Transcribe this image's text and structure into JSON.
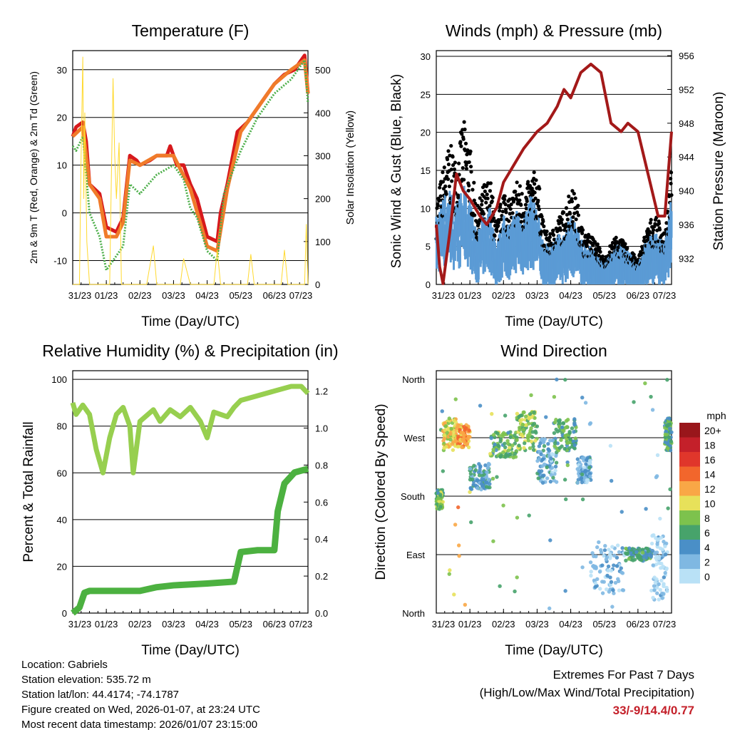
{
  "chart_data": [
    {
      "type": "line",
      "title": "Temperature (F)",
      "xlabel": "Time (Day/UTC)",
      "ylabel": "2m & 9m T (Red, Orange) & 2m Td (Green)",
      "y2label": "Solar Insolation (Yellow)",
      "xticks": [
        "31/23",
        "01/23",
        "02/23",
        "03/23",
        "04/23",
        "05/23",
        "06/23",
        "07/23"
      ],
      "yticks": [
        "-10",
        "0",
        "10",
        "20",
        "30"
      ],
      "y2ticks": [
        "0",
        "100",
        "200",
        "300",
        "400",
        "500"
      ],
      "ylim": [
        -15,
        34
      ],
      "y2lim": [
        0,
        545
      ],
      "xlim": [
        0,
        7
      ],
      "series": [
        {
          "name": "2m T",
          "color": "#d7191c",
          "x": [
            0,
            0.1,
            0.3,
            0.4,
            0.5,
            0.8,
            1.0,
            1.3,
            1.5,
            1.7,
            1.9,
            2.0,
            2.3,
            2.5,
            2.8,
            2.9,
            3.1,
            3.3,
            3.5,
            3.7,
            4.0,
            4.3,
            4.4,
            4.6,
            4.9,
            5.2,
            5.5,
            5.8,
            6.0,
            6.3,
            6.6,
            6.9,
            7.0
          ],
          "y": [
            16,
            18,
            19,
            15,
            6,
            4,
            -3,
            -4,
            -1,
            12,
            11,
            10,
            11,
            12,
            12,
            14,
            10,
            10,
            6,
            3,
            -5,
            -6,
            0,
            6,
            17,
            19,
            22,
            25,
            27,
            29,
            30,
            33,
            25
          ]
        },
        {
          "name": "9m T",
          "color": "#f07b2a",
          "x": [
            0,
            0.3,
            0.5,
            0.8,
            1.0,
            1.3,
            1.5,
            1.7,
            2.0,
            2.5,
            3.0,
            3.5,
            4.0,
            4.3,
            4.6,
            5.0,
            5.5,
            6.0,
            6.5,
            6.9,
            7.0
          ],
          "y": [
            16,
            18,
            6,
            3,
            -5,
            -5,
            -2,
            11,
            10,
            12,
            12,
            5,
            -7,
            -8,
            5,
            17,
            22,
            27,
            30,
            32,
            25
          ]
        },
        {
          "name": "2m Td",
          "color": "#4daf4a",
          "x": [
            0,
            0.1,
            0.3,
            0.5,
            0.8,
            1.0,
            1.2,
            1.5,
            1.7,
            2.0,
            2.5,
            3.0,
            3.3,
            3.5,
            3.7,
            4.0,
            4.3,
            4.5,
            5.0,
            5.5,
            6.0,
            6.5,
            6.9,
            7.0
          ],
          "y": [
            14,
            13,
            16,
            0,
            -5,
            -12,
            -10,
            -7,
            6,
            4,
            8,
            10,
            7,
            1,
            -1,
            -8,
            -10,
            4,
            13,
            20,
            25,
            28,
            32,
            23
          ]
        },
        {
          "name": "Solar",
          "axis": "y2",
          "color": "#ffd92f",
          "x": [
            0,
            0.2,
            0.25,
            0.3,
            0.33,
            0.36,
            0.42,
            0.5,
            1.1,
            1.15,
            1.2,
            1.25,
            1.3,
            1.38,
            1.45,
            2.2,
            2.4,
            2.5,
            3.2,
            3.3,
            3.5,
            4.2,
            4.3,
            4.4,
            5.2,
            5.3,
            5.4,
            6.2,
            6.3,
            6.4,
            6.9,
            6.95,
            7.0
          ],
          "y": [
            0,
            0,
            300,
            530,
            200,
            400,
            100,
            0,
            0,
            250,
            480,
            300,
            200,
            330,
            0,
            0,
            90,
            0,
            0,
            60,
            0,
            0,
            80,
            0,
            0,
            70,
            0,
            0,
            80,
            0,
            0,
            140,
            0
          ]
        }
      ]
    },
    {
      "type": "scatter",
      "title": "Winds (mph) & Pressure (mb)",
      "xlabel": "Time (Day/UTC)",
      "ylabel": "Sonic Wind & Gust (Blue, Black)",
      "y2label": "Station Pressure (Maroon)",
      "xticks": [
        "31/23",
        "01/23",
        "02/23",
        "03/23",
        "04/23",
        "05/23",
        "06/23",
        "07/23"
      ],
      "yticks": [
        "0",
        "5",
        "10",
        "15",
        "20",
        "25",
        "30"
      ],
      "y2ticks": [
        "932",
        "936",
        "940",
        "944",
        "948",
        "952",
        "956"
      ],
      "ylim": [
        0,
        30.75
      ],
      "y2lim": [
        928.9,
        956.6
      ],
      "xlim": [
        0,
        7
      ],
      "wind": {
        "x": [
          0,
          0.2,
          0.4,
          0.6,
          0.8,
          1.0,
          1.2,
          1.4,
          1.6,
          1.8,
          2.0,
          2.2,
          2.4,
          2.6,
          2.8,
          3.0,
          3.2,
          3.4,
          3.6,
          3.8,
          4.0,
          4.2,
          4.4,
          4.6,
          4.8,
          5.0,
          5.2,
          5.4,
          5.6,
          5.8,
          6.0,
          6.2,
          6.4,
          6.6,
          6.8,
          7.0
        ],
        "y": [
          6,
          8,
          9,
          7,
          9,
          8,
          4,
          6,
          7,
          3,
          6,
          5,
          7,
          6,
          8,
          7,
          3,
          3,
          4,
          4,
          6,
          5,
          3,
          3,
          2,
          1,
          2,
          3,
          3,
          2,
          1,
          3,
          4,
          4,
          3,
          8
        ]
      },
      "gust": {
        "y": [
          10,
          14,
          17,
          15,
          20,
          17,
          9,
          12,
          13,
          7,
          12,
          10,
          13,
          11,
          13,
          14,
          7,
          6,
          8,
          9,
          12,
          10,
          6,
          6,
          5,
          3,
          5,
          6,
          5,
          4,
          3,
          6,
          8,
          8,
          6,
          14
        ]
      },
      "pressure": {
        "x": [
          0,
          0.1,
          0.2,
          0.4,
          0.6,
          0.8,
          1.0,
          1.3,
          1.5,
          1.8,
          2.0,
          2.3,
          2.6,
          3.0,
          3.3,
          3.6,
          3.8,
          4.0,
          4.3,
          4.6,
          4.9,
          5.2,
          5.5,
          5.7,
          6.0,
          6.3,
          6.6,
          6.8,
          7.0
        ],
        "y": [
          936,
          931,
          929,
          935,
          942,
          940,
          939,
          937,
          936,
          938,
          941,
          943,
          945,
          947,
          948,
          950,
          952,
          951,
          954,
          955,
          954,
          948,
          947,
          948,
          947,
          942,
          937,
          937,
          947
        ]
      }
    },
    {
      "type": "line",
      "title": "Relative Humidity (%) & Precipitation (in)",
      "xlabel": "Time (Day/UTC)",
      "ylabel": "Percent & Total Rainfall",
      "xticks": [
        "31/23",
        "01/23",
        "02/23",
        "03/23",
        "04/23",
        "05/23",
        "06/23",
        "07/23"
      ],
      "yticks": [
        "0",
        "20",
        "40",
        "60",
        "80",
        "100"
      ],
      "y2ticks": [
        "0.0",
        "0.2",
        "0.4",
        "0.6",
        "0.8",
        "1.0",
        "1.2"
      ],
      "ylim": [
        0,
        103.7
      ],
      "y2lim": [
        0,
        1.31
      ],
      "xlim": [
        0,
        7
      ],
      "rh": {
        "x": [
          0,
          0.1,
          0.3,
          0.5,
          0.7,
          0.9,
          1.1,
          1.3,
          1.5,
          1.7,
          1.8,
          2.0,
          2.4,
          2.6,
          2.9,
          3.2,
          3.5,
          3.8,
          4.0,
          4.2,
          4.6,
          4.8,
          5.0,
          5.5,
          6.0,
          6.5,
          6.8,
          7.0
        ],
        "y": [
          90,
          85,
          89,
          85,
          70,
          60,
          75,
          85,
          88,
          80,
          60,
          82,
          87,
          82,
          87,
          84,
          88,
          82,
          75,
          86,
          84,
          88,
          91,
          93,
          95,
          97,
          97,
          94
        ]
      },
      "precip": {
        "x": [
          0,
          0.2,
          0.35,
          0.5,
          2.0,
          2.5,
          3.0,
          4.0,
          4.8,
          5.0,
          5.5,
          6.0,
          6.1,
          6.3,
          6.6,
          7.0
        ],
        "y": [
          0,
          0.03,
          0.11,
          0.12,
          0.12,
          0.14,
          0.15,
          0.16,
          0.17,
          0.33,
          0.34,
          0.34,
          0.55,
          0.7,
          0.76,
          0.78
        ]
      }
    },
    {
      "type": "scatter",
      "title": "Wind Direction",
      "xlabel": "Time (Day/UTC)",
      "ylabel": "Direction (Colored By Speed)",
      "xticks": [
        "31/23",
        "01/23",
        "02/23",
        "03/23",
        "04/23",
        "05/23",
        "06/23",
        "07/23"
      ],
      "yticks": [
        "North",
        "East",
        "South",
        "West",
        "North"
      ],
      "legend": {
        "title": "mph",
        "labels": [
          "20+",
          "18",
          "16",
          "14",
          "12",
          "10",
          "8",
          "6",
          "4",
          "2",
          "0"
        ],
        "colors": [
          "#99161b",
          "#c4202a",
          "#e0362b",
          "#f2662c",
          "#f9a746",
          "#e7e15a",
          "#7dc24d",
          "#47a36b",
          "#4a8fc7",
          "#7fb8e2",
          "#b9e1f6"
        ]
      },
      "clusters": [
        {
          "x": [
            0,
            0.2
          ],
          "dir": [
            160,
            190
          ],
          "speed": 7
        },
        {
          "x": [
            0.2,
            0.6
          ],
          "dir": [
            250,
            300
          ],
          "speed": 10
        },
        {
          "x": [
            0.6,
            1.0
          ],
          "dir": [
            255,
            290
          ],
          "speed": 12
        },
        {
          "x": [
            1.0,
            1.6
          ],
          "dir": [
            190,
            230
          ],
          "speed": 4
        },
        {
          "x": [
            1.6,
            2.4
          ],
          "dir": [
            240,
            280
          ],
          "speed": 7
        },
        {
          "x": [
            2.4,
            3.0
          ],
          "dir": [
            250,
            310
          ],
          "speed": 8
        },
        {
          "x": [
            3.0,
            3.6
          ],
          "dir": [
            200,
            270
          ],
          "speed": 3
        },
        {
          "x": [
            3.5,
            4.2
          ],
          "dir": [
            250,
            300
          ],
          "speed": 6
        },
        {
          "x": [
            4.2,
            4.6
          ],
          "dir": [
            200,
            240
          ],
          "speed": 3
        },
        {
          "x": [
            4.6,
            5.6
          ],
          "dir": [
            30,
            110
          ],
          "speed": 2
        },
        {
          "x": [
            5.6,
            6.4
          ],
          "dir": [
            80,
            100
          ],
          "speed": 5
        },
        {
          "x": [
            6.4,
            6.9
          ],
          "dir": [
            20,
            120
          ],
          "speed": 1
        },
        {
          "x": [
            6.8,
            7.0
          ],
          "dir": [
            250,
            300
          ],
          "speed": 6
        }
      ]
    }
  ],
  "info": {
    "location": "Location: Gabriels",
    "elevation": "Station elevation: 535.72 m",
    "latlon": "Station lat/lon: 44.4174; -74.1787",
    "created": "Figure created on Wed, 2026-01-07, at 23:24 UTC",
    "recent": "Most recent data timestamp: 2026/01/07 23:15:00"
  },
  "extremes": {
    "title": "Extremes For Past 7 Days",
    "subtitle": "(High/Low/Max Wind/Total Precipitation)",
    "values": "33/-9/14.4/0.77"
  }
}
